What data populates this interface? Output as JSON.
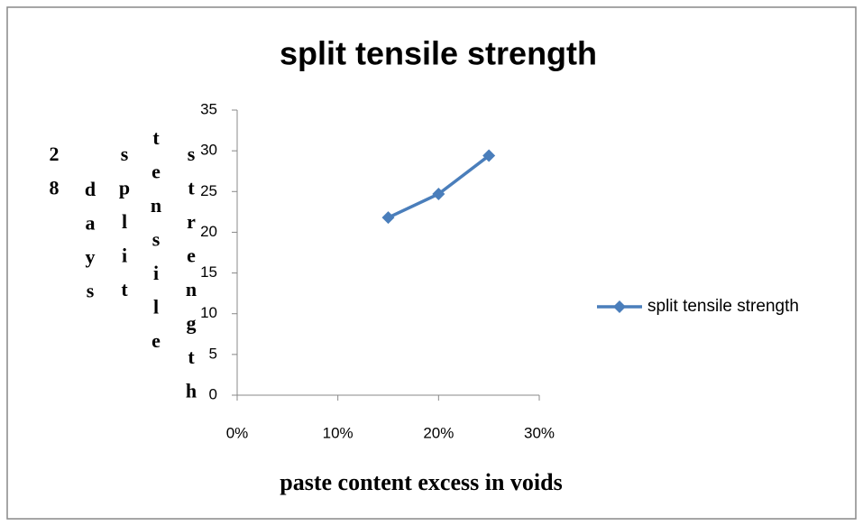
{
  "chart_data": {
    "type": "line",
    "title": "split tensile strength",
    "xlabel": "paste content excess in voids",
    "ylabel": "28 days split tensile strength",
    "x": [
      15,
      20,
      25
    ],
    "series": [
      {
        "name": "split tensile strength",
        "color": "#4a7ebb",
        "values": [
          21.8,
          24.7,
          29.4
        ]
      }
    ],
    "xlim": [
      0,
      30
    ],
    "xticks": [
      {
        "value": 0,
        "label": "0%"
      },
      {
        "value": 10,
        "label": "10%"
      },
      {
        "value": 20,
        "label": "20%"
      },
      {
        "value": 30,
        "label": "30%"
      }
    ],
    "ylim": [
      0,
      35
    ],
    "yticks": [
      0,
      5,
      10,
      15,
      20,
      25,
      30,
      35
    ],
    "legend": "right"
  }
}
